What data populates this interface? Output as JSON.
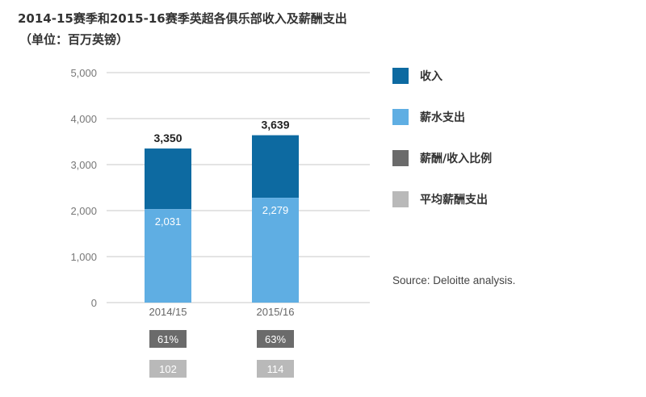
{
  "title": "2014-15赛季和2015-16赛季英超各俱乐部收入及薪酬支出",
  "subtitle": "（单位：百万英镑）",
  "source": "Source: Deloitte analysis.",
  "colors": {
    "revenue": "#0d6aa1",
    "wages": "#5faee3",
    "ratio": "#6b6b6b",
    "avg_wage": "#b9b9b9",
    "grid": "#c9c9c9"
  },
  "legend": [
    {
      "label": "收入",
      "color": "#0d6aa1"
    },
    {
      "label": "薪水支出",
      "color": "#5faee3"
    },
    {
      "label": "薪酬/收入比例",
      "color": "#6b6b6b"
    },
    {
      "label": "平均薪酬支出",
      "color": "#b9b9b9"
    }
  ],
  "chart_data": {
    "type": "bar",
    "categories": [
      "2014/15",
      "2015/16"
    ],
    "series": [
      {
        "name": "收入",
        "values": [
          3350,
          3639
        ],
        "labels": [
          "3,350",
          "3,639"
        ]
      },
      {
        "name": "薪水支出",
        "values": [
          2031,
          2279
        ],
        "labels": [
          "2,031",
          "2,279"
        ]
      }
    ],
    "y_ticks": [
      "0",
      "1,000",
      "2,000",
      "3,000",
      "4,000",
      "5,000"
    ],
    "ylim": [
      0,
      5000
    ],
    "grid": true,
    "table_rows": [
      {
        "name": "薪酬/收入比例",
        "values": [
          "61%",
          "63%"
        ]
      },
      {
        "name": "平均薪酬支出",
        "values": [
          "102",
          "114"
        ]
      }
    ]
  }
}
